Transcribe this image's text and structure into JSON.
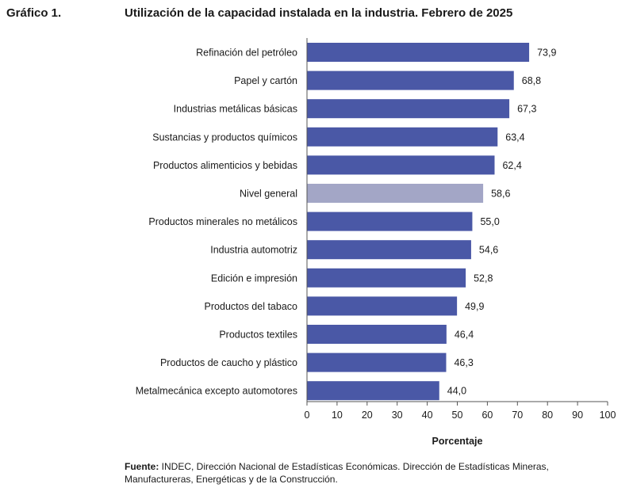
{
  "figure": {
    "label": "Gráfico 1.",
    "title": "Utilización de la capacidad instalada en la industria. Febrero de 2025"
  },
  "chart_data": {
    "type": "bar",
    "orientation": "horizontal",
    "title": "Utilización de la capacidad instalada en la industria. Febrero de 2025",
    "xlabel": "Porcentaje",
    "ylabel": "",
    "xlim": [
      0,
      100
    ],
    "xticks": [
      0,
      10,
      20,
      30,
      40,
      50,
      60,
      70,
      80,
      90,
      100
    ],
    "categories": [
      "Refinación del petróleo",
      "Papel y cartón",
      "Industrias metálicas básicas",
      "Sustancias y productos químicos",
      "Productos alimenticios y bebidas",
      "Nivel general",
      "Productos minerales no metálicos",
      "Industria automotriz",
      "Edición e impresión",
      "Productos del tabaco",
      "Productos textiles",
      "Productos de caucho y plástico",
      "Metalmecánica excepto automotores"
    ],
    "values": [
      73.9,
      68.8,
      67.3,
      63.4,
      62.4,
      58.6,
      55.0,
      54.6,
      52.8,
      49.9,
      46.4,
      46.3,
      44.0
    ],
    "value_labels": [
      "73,9",
      "68,8",
      "67,3",
      "63,4",
      "62,4",
      "58,6",
      "55,0",
      "54,6",
      "52,8",
      "49,9",
      "46,4",
      "46,3",
      "44,0"
    ],
    "highlight_category": "Nivel general",
    "colors": {
      "bar": "#4a58a6",
      "highlight": "#a3a6c6",
      "axis": "#555555"
    }
  },
  "source": {
    "label": "Fuente:",
    "text": " INDEC, Dirección Nacional de Estadísticas Económicas. Dirección de Estadísticas Mineras, Manufactureras, Energéticas y de la Construcción."
  }
}
